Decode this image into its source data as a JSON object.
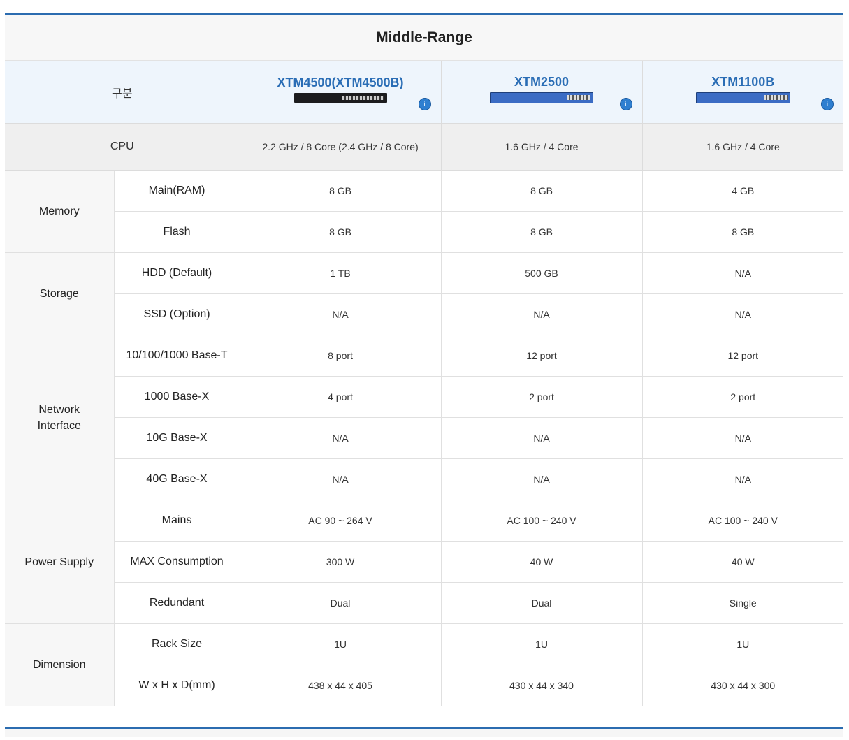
{
  "title": "Middle-Range",
  "header": {
    "category_label": "구분",
    "models": [
      {
        "name": "XTM4500(XTM4500B)",
        "device_style": "dark"
      },
      {
        "name": "XTM2500",
        "device_style": "blue"
      },
      {
        "name": "XTM1100B",
        "device_style": "blue"
      }
    ],
    "badge_icon": "info-badge-icon"
  },
  "cpu": {
    "label": "CPU",
    "values": [
      "2.2 GHz / 8 Core (2.4 GHz / 8 Core)",
      "1.6 GHz / 4 Core",
      "1.6 GHz / 4 Core"
    ]
  },
  "groups": [
    {
      "label": "Memory",
      "rows": [
        {
          "label": "Main(RAM)",
          "values": [
            "8 GB",
            "8 GB",
            "4 GB"
          ]
        },
        {
          "label": "Flash",
          "values": [
            "8 GB",
            "8 GB",
            "8 GB"
          ]
        }
      ]
    },
    {
      "label": "Storage",
      "rows": [
        {
          "label": "HDD (Default)",
          "values": [
            "1 TB",
            "500 GB",
            "N/A"
          ]
        },
        {
          "label": "SSD (Option)",
          "values": [
            "N/A",
            "N/A",
            "N/A"
          ]
        }
      ]
    },
    {
      "label": "Network Interface",
      "rows": [
        {
          "label": "10/100/1000 Base-T",
          "values": [
            "8 port",
            "12 port",
            "12 port"
          ]
        },
        {
          "label": "1000 Base-X",
          "values": [
            "4 port",
            "2 port",
            "2 port"
          ]
        },
        {
          "label": "10G Base-X",
          "values": [
            "N/A",
            "N/A",
            "N/A"
          ]
        },
        {
          "label": "40G Base-X",
          "values": [
            "N/A",
            "N/A",
            "N/A"
          ]
        }
      ]
    },
    {
      "label": "Power Supply",
      "rows": [
        {
          "label": "Mains",
          "values": [
            "AC 90 ~ 264 V",
            "AC 100 ~ 240 V",
            "AC 100 ~ 240 V"
          ]
        },
        {
          "label": "MAX Consumption",
          "values": [
            "300 W",
            "40 W",
            "40 W"
          ]
        },
        {
          "label": "Redundant",
          "values": [
            "Dual",
            "Dual",
            "Single"
          ]
        }
      ]
    },
    {
      "label": "Dimension",
      "rows": [
        {
          "label": "Rack Size",
          "values": [
            "1U",
            "1U",
            "1U"
          ]
        },
        {
          "label": "W x H x D(mm)",
          "values": [
            "438 x 44 x 405",
            "430 x 44 x 340",
            "430 x 44 x 300"
          ]
        }
      ]
    }
  ],
  "colors": {
    "accent": "#2b6cb0",
    "model_text": "#2a6db5",
    "header_bg": "#eef5fc"
  }
}
